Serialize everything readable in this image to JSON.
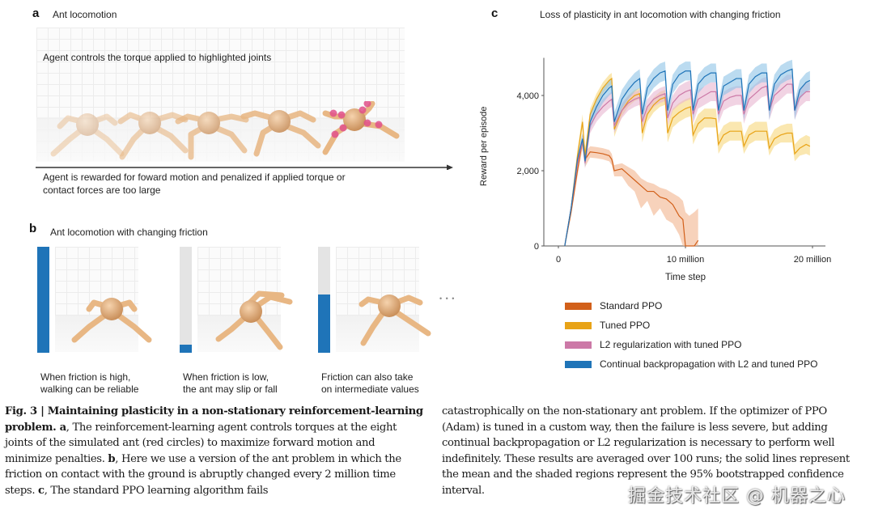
{
  "panel_a": {
    "letter": "a",
    "title": "Ant locomotion",
    "top_text": "Agent controls the torque applied to highlighted joints",
    "bottom_text_line1": "Agent is rewarded for foward motion and penalized if applied torque or",
    "bottom_text_line2": "contact forces are too large",
    "ant_frames": 5,
    "highlight_color": "#e0508a",
    "ant_color": "#e8b784"
  },
  "panel_b": {
    "letter": "b",
    "title": "Ant locomotion with changing friction",
    "ellipsis": "• • •",
    "bar_color": "#1f74b8",
    "bar_track_color": "#e4e4e4",
    "frames": [
      {
        "friction_level": 1.0,
        "caption_line1": "When friction is high,",
        "caption_line2": "walking can be reliable"
      },
      {
        "friction_level": 0.08,
        "caption_line1": "When friction is low,",
        "caption_line2": "the ant may slip or fall"
      },
      {
        "friction_level": 0.55,
        "caption_line1": "Friction can also take",
        "caption_line2": "on intermediate values"
      }
    ]
  },
  "panel_c": {
    "letter": "c"
  },
  "chart_data": {
    "type": "line",
    "title": "Loss of plasticity in ant locomotion with changing friction",
    "xlabel": "Time step",
    "ylabel": "Reward per episode",
    "xlim": [
      0,
      20500000
    ],
    "ylim": [
      0,
      5000
    ],
    "xticks": [
      0,
      10000000,
      20000000
    ],
    "xtick_labels": [
      "0",
      "10  million",
      "20 million"
    ],
    "yticks": [
      0,
      2000,
      4000
    ],
    "ytick_labels": [
      "0",
      "2,000",
      "4,000"
    ],
    "grid": false,
    "legend_position": "below",
    "friction_change_interval": 2000000,
    "series": [
      {
        "name": "Standard PPO",
        "color": "#d2601a",
        "band_color": "#f2b48e",
        "x": [
          500000,
          1000000,
          1500000,
          1900000,
          2100000,
          2500000,
          3000000,
          3500000,
          4000000,
          4200000,
          4400000,
          5000000,
          5500000,
          6000000,
          6500000,
          7000000,
          7500000,
          8000000,
          8500000,
          9000000,
          9500000,
          9800000,
          10000000,
          10300000,
          10700000,
          11000000
        ],
        "y": [
          0,
          900,
          2000,
          2800,
          2300,
          2500,
          2480,
          2450,
          2400,
          2300,
          2000,
          2050,
          1900,
          1750,
          1600,
          1450,
          1450,
          1300,
          1250,
          1100,
          800,
          700,
          0,
          0,
          0,
          150
        ],
        "lower": [
          0,
          800,
          1850,
          2600,
          2100,
          2350,
          2330,
          2300,
          2250,
          2150,
          1850,
          1850,
          1600,
          1450,
          1000,
          1200,
          800,
          1000,
          700,
          600,
          300,
          0,
          0,
          0,
          0,
          0
        ],
        "upper": [
          0,
          1000,
          2150,
          3000,
          2500,
          2650,
          2630,
          2600,
          2550,
          2450,
          2150,
          2200,
          2100,
          2000,
          1800,
          1700,
          1650,
          1550,
          1500,
          1400,
          1300,
          1200,
          900,
          800,
          900,
          1000
        ]
      },
      {
        "name": "Tuned PPO",
        "color": "#e8a317",
        "band_color": "#f6d77c",
        "x": [
          500000,
          1000000,
          1500000,
          1900000,
          2100000,
          2500000,
          3000000,
          3500000,
          4000000,
          4200000,
          4400000,
          5000000,
          5500000,
          6000000,
          6400000,
          6600000,
          7000000,
          7500000,
          8000000,
          8400000,
          8600000,
          9000000,
          9500000,
          10000000,
          10400000,
          10600000,
          11000000,
          11500000,
          12000000,
          12400000,
          12600000,
          13000000,
          13500000,
          14000000,
          14400000,
          14600000,
          15000000,
          15500000,
          16000000,
          16400000,
          16600000,
          17000000,
          17500000,
          18000000,
          18400000,
          18600000,
          19000000,
          19500000,
          19800000
        ],
        "y": [
          0,
          1000,
          2400,
          3300,
          2400,
          3500,
          3900,
          4200,
          4400,
          4450,
          3100,
          3600,
          3850,
          4000,
          4050,
          3000,
          3500,
          3750,
          3900,
          3950,
          3000,
          3400,
          3550,
          3650,
          3700,
          2950,
          3250,
          3400,
          3400,
          3380,
          2700,
          2950,
          3050,
          3050,
          3050,
          2650,
          2950,
          3050,
          3050,
          3050,
          2600,
          2850,
          2950,
          3000,
          3000,
          2450,
          2600,
          2700,
          2650
        ],
        "lower": [
          0,
          900,
          2250,
          3100,
          2250,
          3350,
          3750,
          4050,
          4250,
          4300,
          2900,
          3450,
          3700,
          3850,
          3900,
          2750,
          3300,
          3550,
          3700,
          3750,
          2750,
          3150,
          3300,
          3400,
          3450,
          2700,
          3000,
          3150,
          3150,
          3150,
          2450,
          2700,
          2800,
          2800,
          2800,
          2450,
          2700,
          2800,
          2800,
          2800,
          2400,
          2650,
          2750,
          2750,
          2750,
          2250,
          2400,
          2450,
          2400
        ],
        "upper": [
          0,
          1100,
          2550,
          3500,
          2550,
          3650,
          4050,
          4350,
          4550,
          4600,
          3300,
          3750,
          4000,
          4150,
          4200,
          3200,
          3700,
          3950,
          4100,
          4150,
          3200,
          3650,
          3800,
          3900,
          3950,
          3200,
          3500,
          3650,
          3650,
          3650,
          2950,
          3200,
          3300,
          3300,
          3300,
          2900,
          3200,
          3300,
          3300,
          3300,
          2850,
          3100,
          3200,
          3250,
          3250,
          2700,
          2850,
          2950,
          2900
        ]
      },
      {
        "name": "L2 regularization with tuned PPO",
        "color": "#cc79a7",
        "band_color": "#e7b6d0",
        "x": [
          500000,
          1000000,
          1500000,
          1900000,
          2100000,
          2500000,
          3000000,
          3500000,
          4000000,
          4200000,
          4400000,
          5000000,
          5500000,
          6000000,
          6400000,
          6600000,
          7000000,
          7500000,
          8000000,
          8400000,
          8600000,
          9000000,
          9500000,
          10000000,
          10400000,
          10600000,
          11000000,
          11500000,
          12000000,
          12400000,
          12600000,
          13000000,
          13500000,
          14000000,
          14400000,
          14600000,
          15000000,
          15500000,
          16000000,
          16400000,
          16600000,
          17000000,
          17500000,
          18000000,
          18400000,
          18600000,
          19000000,
          19500000,
          19800000
        ],
        "y": [
          0,
          1000,
          2200,
          2800,
          2200,
          3200,
          3500,
          3700,
          3850,
          3900,
          3200,
          3600,
          3800,
          3900,
          3950,
          3300,
          3700,
          3900,
          4000,
          4050,
          3400,
          3800,
          4000,
          4100,
          4150,
          3500,
          3900,
          4000,
          4100,
          4100,
          3500,
          3850,
          3950,
          4000,
          4000,
          3500,
          3900,
          4050,
          4200,
          4250,
          3600,
          4000,
          4150,
          4300,
          4300,
          3600,
          3950,
          4100,
          4100
        ],
        "lower": [
          0,
          900,
          2050,
          2650,
          2050,
          3000,
          3300,
          3500,
          3650,
          3700,
          3000,
          3400,
          3600,
          3700,
          3750,
          3100,
          3500,
          3700,
          3800,
          3850,
          3200,
          3600,
          3750,
          3850,
          3900,
          3250,
          3650,
          3750,
          3850,
          3850,
          3250,
          3600,
          3700,
          3750,
          3750,
          3250,
          3650,
          3800,
          3950,
          4000,
          3350,
          3750,
          3900,
          4050,
          4050,
          3350,
          3700,
          3850,
          3850
        ],
        "upper": [
          0,
          1100,
          2350,
          2950,
          2350,
          3400,
          3700,
          3900,
          4050,
          4100,
          3400,
          3800,
          4000,
          4100,
          4150,
          3500,
          3900,
          4100,
          4200,
          4250,
          3600,
          4000,
          4250,
          4350,
          4400,
          3750,
          4150,
          4250,
          4350,
          4350,
          3750,
          4100,
          4200,
          4250,
          4250,
          3750,
          4150,
          4300,
          4450,
          4500,
          3850,
          4250,
          4400,
          4550,
          4550,
          3850,
          4200,
          4350,
          4350
        ]
      },
      {
        "name": "Continual backpropagation with L2 and tuned PPO",
        "color": "#1f74b8",
        "band_color": "#8ec3e6",
        "x": [
          500000,
          1000000,
          1500000,
          1900000,
          2100000,
          2500000,
          3000000,
          3500000,
          4000000,
          4200000,
          4400000,
          5000000,
          5500000,
          6000000,
          6400000,
          6600000,
          7000000,
          7500000,
          8000000,
          8400000,
          8600000,
          9000000,
          9500000,
          10000000,
          10400000,
          10600000,
          11000000,
          11500000,
          12000000,
          12400000,
          12600000,
          13000000,
          13500000,
          14000000,
          14400000,
          14600000,
          15000000,
          15500000,
          16000000,
          16400000,
          16600000,
          17000000,
          17500000,
          18000000,
          18400000,
          18600000,
          19000000,
          19500000,
          19800000
        ],
        "y": [
          0,
          1000,
          2300,
          2850,
          2250,
          3300,
          3700,
          4000,
          4200,
          4250,
          3300,
          3900,
          4150,
          4350,
          4450,
          3500,
          4200,
          4450,
          4600,
          4650,
          3600,
          4300,
          4550,
          4650,
          4650,
          3600,
          4300,
          4500,
          4600,
          4600,
          3600,
          4250,
          4350,
          4450,
          4450,
          3600,
          4300,
          4500,
          4600,
          4600,
          3600,
          4300,
          4550,
          4650,
          4700,
          3600,
          4150,
          4350,
          4400
        ],
        "lower": [
          0,
          900,
          2150,
          2700,
          2100,
          3100,
          3500,
          3800,
          4000,
          4050,
          3050,
          3650,
          3900,
          4100,
          4200,
          3250,
          3950,
          4200,
          4350,
          4400,
          3350,
          4050,
          4300,
          4400,
          4400,
          3350,
          4050,
          4250,
          4350,
          4350,
          3350,
          4000,
          4100,
          4200,
          4200,
          3350,
          4050,
          4250,
          4350,
          4350,
          3350,
          4050,
          4300,
          4400,
          4450,
          3350,
          3900,
          4100,
          4150
        ],
        "upper": [
          0,
          1100,
          2450,
          3000,
          2400,
          3500,
          3900,
          4200,
          4400,
          4450,
          3550,
          4150,
          4400,
          4600,
          4700,
          3750,
          4450,
          4700,
          4850,
          4900,
          3850,
          4550,
          4800,
          4900,
          4900,
          3850,
          4550,
          4750,
          4850,
          4850,
          3850,
          4500,
          4600,
          4700,
          4700,
          3850,
          4550,
          4750,
          4850,
          4850,
          3850,
          4550,
          4800,
          4900,
          4950,
          3850,
          4400,
          4600,
          4650
        ]
      }
    ]
  },
  "caption": {
    "col1_parts": [
      {
        "bold": true,
        "text": "Fig. 3 | Maintaining plasticity in a non-stationary reinforcement-learning problem. a"
      },
      {
        "bold": false,
        "text": ", The reinforcement-learning agent controls torques at the eight joints of the simulated ant (red circles) to maximize forward motion and minimize penalties. "
      },
      {
        "bold": true,
        "text": "b"
      },
      {
        "bold": false,
        "text": ", Here we use a version of the ant problem in which the friction on contact with the ground is abruptly changed every 2 million time steps. "
      },
      {
        "bold": true,
        "text": "c"
      },
      {
        "bold": false,
        "text": ", The standard PPO learning algorithm fails"
      }
    ],
    "col2_text": "catastrophically on the non-stationary ant problem. If the optimizer of PPO (Adam) is tuned in a custom way, then the failure is less severe, but adding continual backpropagation or L2 regularization is necessary to perform well indefinitely. These results are averaged over 100 runs; the solid lines represent the mean and the shaded regions represent the 95% bootstrapped confidence interval."
  },
  "watermark": "掘金技术社区 @ 机器之心"
}
